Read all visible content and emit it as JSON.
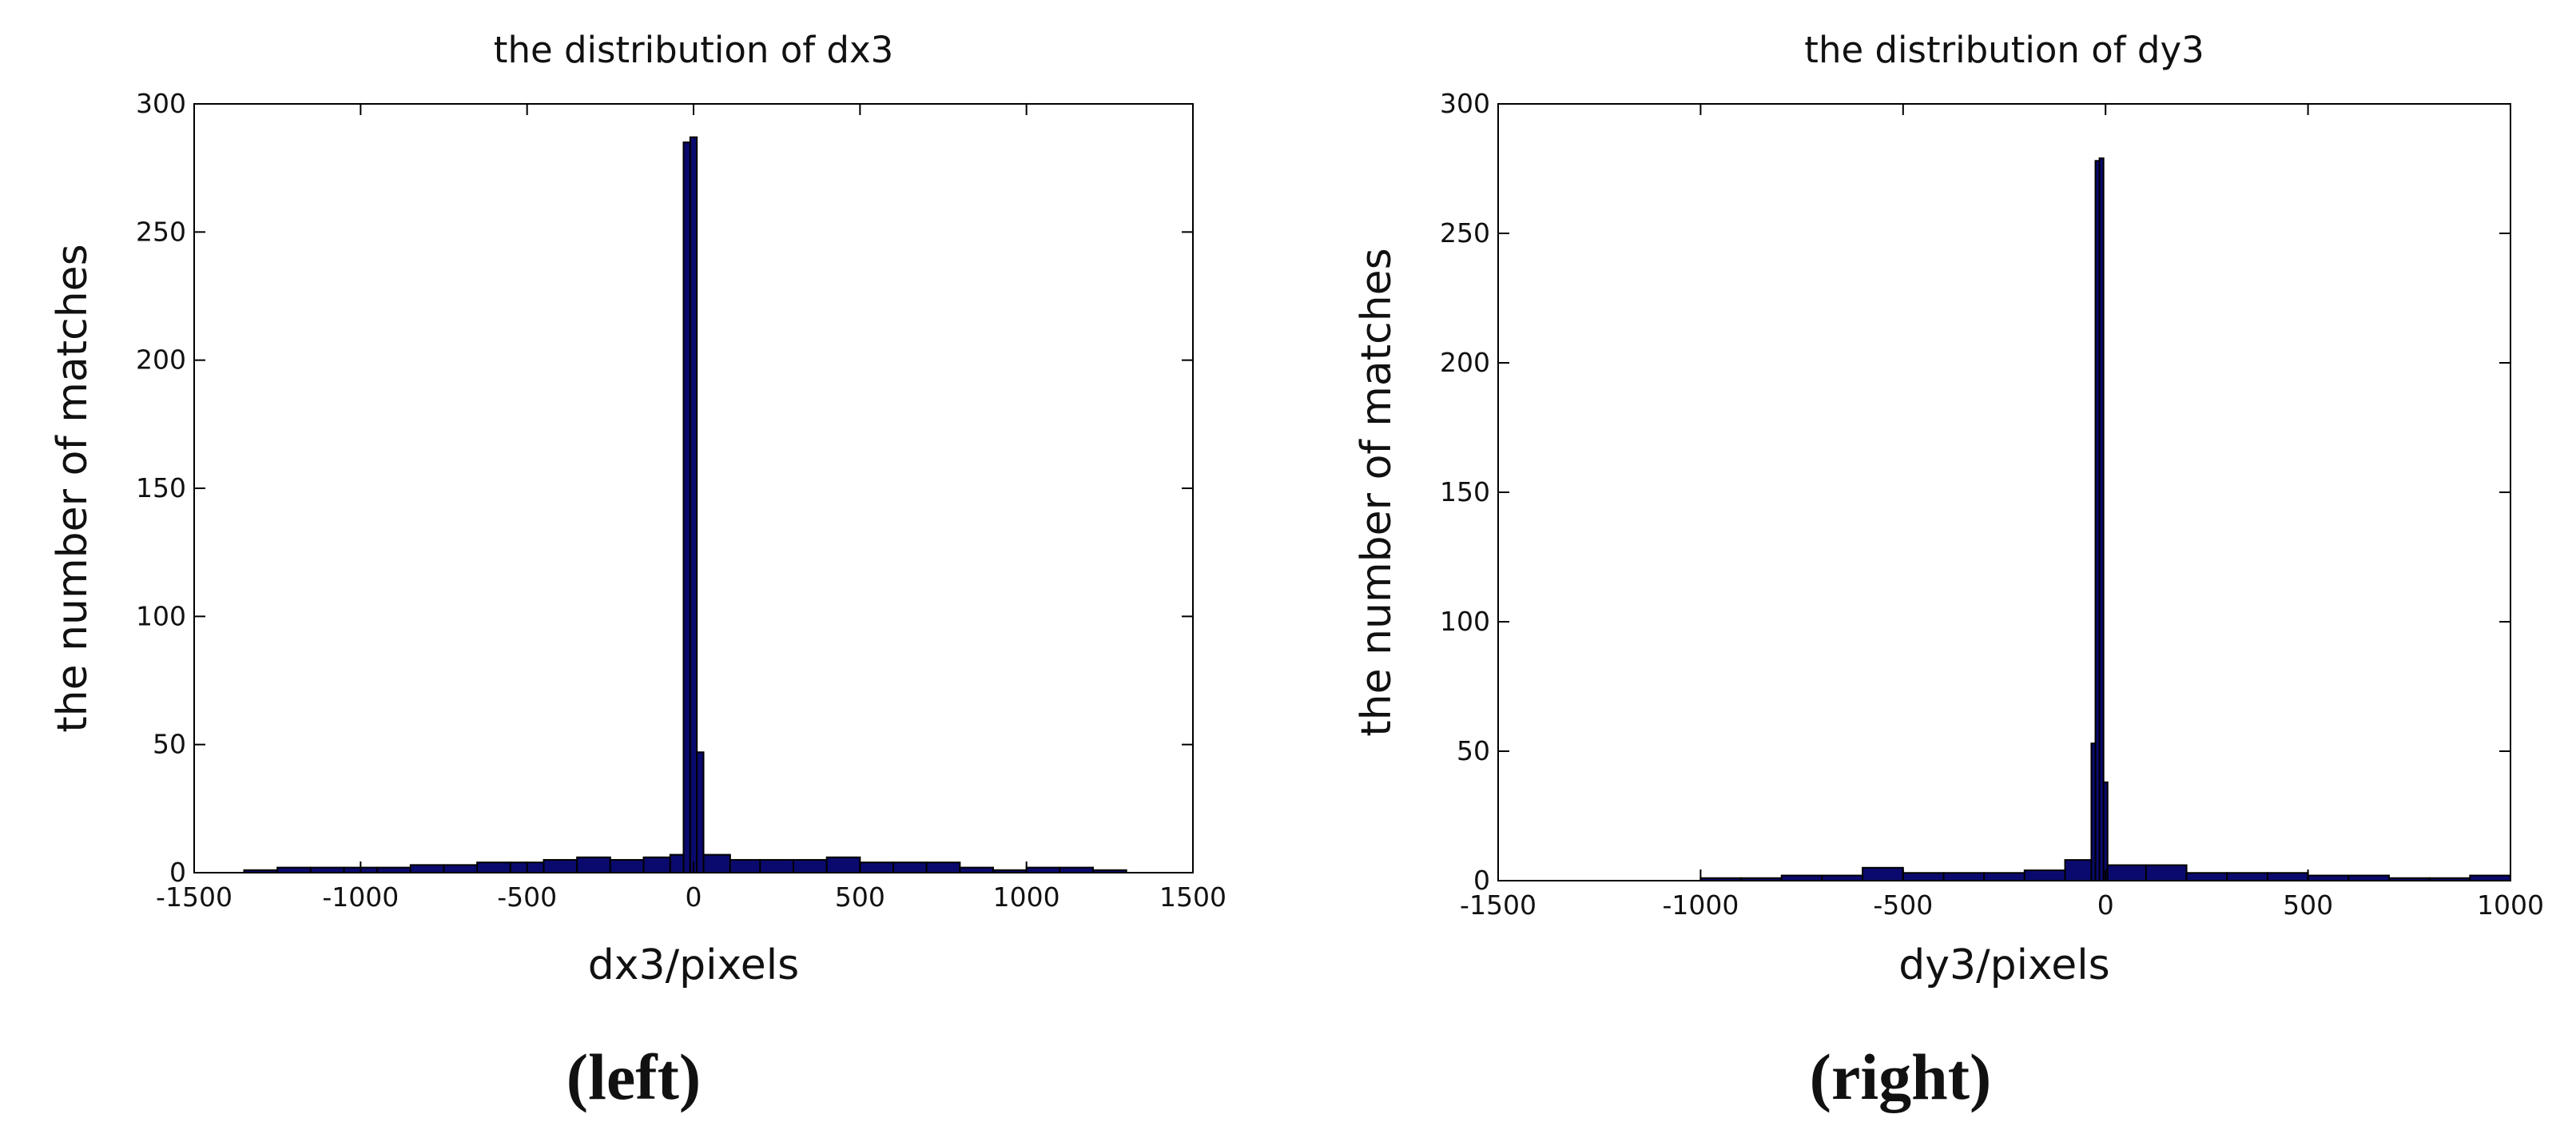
{
  "chart_data": [
    {
      "type": "histogram",
      "title": "the distribution of dx3",
      "xlabel": "dx3/pixels",
      "ylabel": "the number of matches",
      "caption": "(left)",
      "color": "#0a0a6e",
      "bins": [
        -1350,
        -1250,
        -1150,
        -1050,
        -950,
        -850,
        -750,
        -650,
        -550,
        -450,
        -350,
        -250,
        -150,
        -70,
        -30,
        -10,
        10,
        30,
        110,
        200,
        300,
        400,
        500,
        600,
        700,
        800,
        900,
        1000,
        1100,
        1200,
        1300
      ],
      "values": [
        1,
        2,
        2,
        2,
        2,
        3,
        3,
        4,
        4,
        5,
        6,
        5,
        6,
        7,
        285,
        287,
        47,
        7,
        5,
        5,
        5,
        6,
        4,
        4,
        4,
        2,
        1,
        2,
        2,
        1
      ],
      "xlim": [
        -1500,
        1500
      ],
      "xticks": [
        -1500,
        -1000,
        -500,
        0,
        500,
        1000,
        1500
      ],
      "ylim": [
        0,
        300
      ],
      "yticks": [
        0,
        50,
        100,
        150,
        200,
        250,
        300
      ]
    },
    {
      "type": "histogram",
      "title": "the distribution of dy3",
      "xlabel": "dy3/pixels",
      "ylabel": "the number of matches",
      "caption": "(right)",
      "color": "#0a0a6e",
      "bins": [
        -1000,
        -900,
        -800,
        -700,
        -600,
        -500,
        -400,
        -300,
        -200,
        -100,
        -35,
        -25,
        -15,
        -5,
        5,
        100,
        200,
        300,
        400,
        500,
        600,
        700,
        800,
        900,
        1000
      ],
      "values": [
        1,
        1,
        2,
        2,
        5,
        3,
        3,
        3,
        4,
        8,
        53,
        278,
        279,
        38,
        6,
        6,
        3,
        3,
        3,
        2,
        2,
        1,
        1,
        2
      ],
      "xlim": [
        -1500,
        1000
      ],
      "xticks": [
        -1500,
        -1000,
        -500,
        0,
        500,
        1000
      ],
      "ylim": [
        0,
        300
      ],
      "yticks": [
        0,
        50,
        100,
        150,
        200,
        250,
        300
      ]
    }
  ]
}
